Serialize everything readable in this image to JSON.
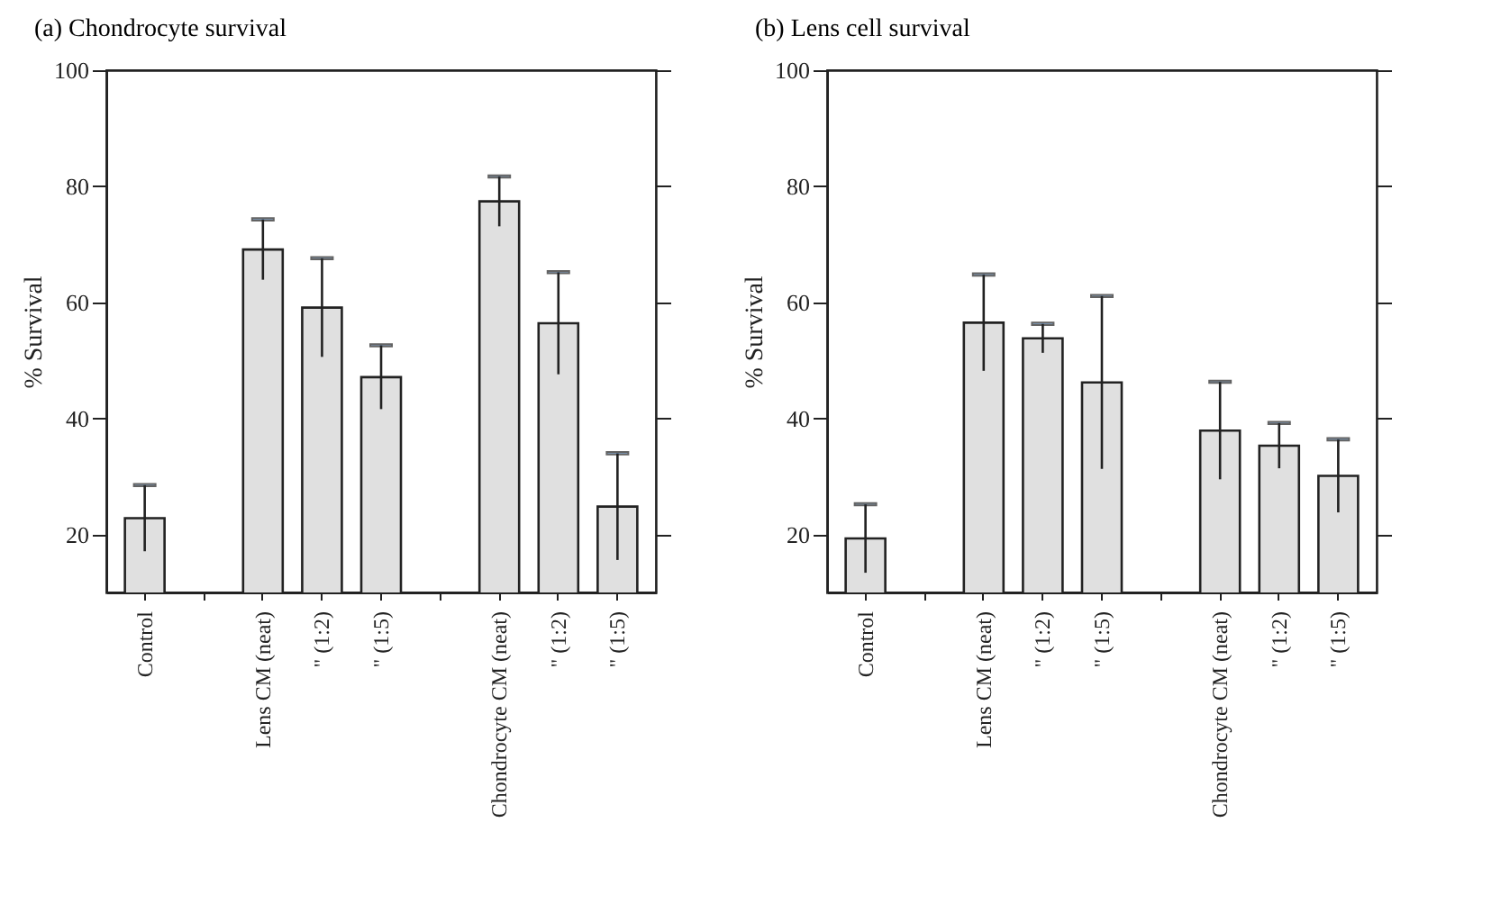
{
  "chart_data": [
    {
      "type": "bar",
      "title": "(a) Chondrocyte survival",
      "ylabel": "% Survival",
      "categories": [
        "Control",
        null,
        "Lens CM (neat)",
        "\"   (1:2)",
        "\"   (1:5)",
        null,
        "Chondrocyte CM (neat)",
        "\"   (1:2)",
        "\"   (1:5)"
      ],
      "values": [
        22.8,
        null,
        69.1,
        59.1,
        47.1,
        null,
        77.4,
        56.4,
        24.8
      ],
      "errors": [
        5.7,
        null,
        5.2,
        8.5,
        5.5,
        null,
        4.3,
        8.8,
        9.2
      ],
      "color": "#e0e0e0",
      "ylim": [
        10,
        100
      ],
      "yticks": [
        20,
        40,
        60,
        80,
        100
      ]
    },
    {
      "type": "bar",
      "title": "(b) Lens cell survival",
      "ylabel": "% Survival",
      "categories": [
        "Control",
        null,
        "Lens CM (neat)",
        "\"   (1:2)",
        "\"   (1:5)",
        null,
        "Chondrocyte CM (neat)",
        "\"   (1:2)",
        "\"   (1:5)"
      ],
      "values": [
        19.3,
        null,
        56.5,
        53.8,
        46.2,
        null,
        37.9,
        35.3,
        30.1
      ],
      "errors": [
        5.9,
        null,
        8.3,
        2.5,
        14.9,
        null,
        8.4,
        3.9,
        6.3
      ],
      "color": "#e0e0e0",
      "ylim": [
        10,
        100
      ],
      "yticks": [
        20,
        40,
        60,
        80,
        100
      ]
    }
  ]
}
